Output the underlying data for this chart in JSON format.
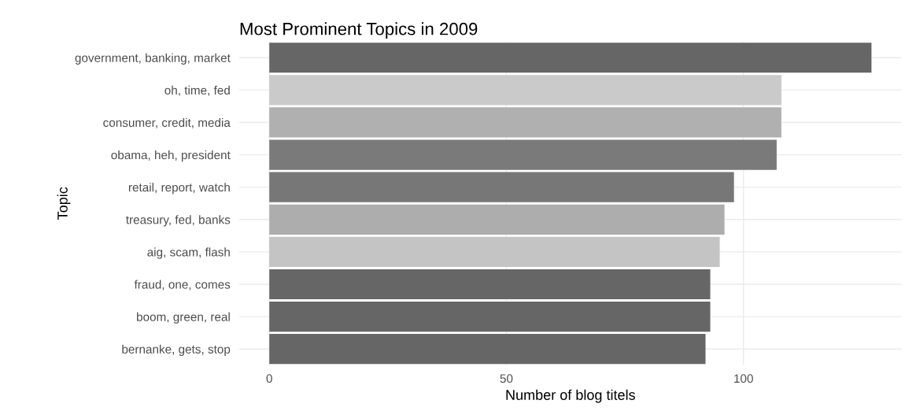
{
  "chart_data": {
    "type": "bar",
    "orientation": "horizontal",
    "title": "Most Prominent Topics in 2009",
    "xlabel": "Number of blog titels",
    "ylabel": "Topic",
    "categories": [
      "government, banking, market",
      "oh, time, fed",
      "consumer, credit, media",
      "obama, heh, president",
      "retail, report, watch",
      "treasury, fed, banks",
      "aig, scam, flash",
      "fraud, one, comes",
      "boom, green, real",
      "bernanke, gets, stop"
    ],
    "values": [
      127,
      108,
      108,
      107,
      98,
      96,
      95,
      93,
      93,
      92
    ],
    "colors": [
      "#666666",
      "#cacaca",
      "#b0b0b0",
      "#7a7a7a",
      "#777777",
      "#adadad",
      "#c4c4c4",
      "#666666",
      "#666666",
      "#666666"
    ],
    "xlim": [
      -6.35,
      133.35
    ],
    "xticks": [
      0,
      50,
      100
    ],
    "grid": true
  }
}
